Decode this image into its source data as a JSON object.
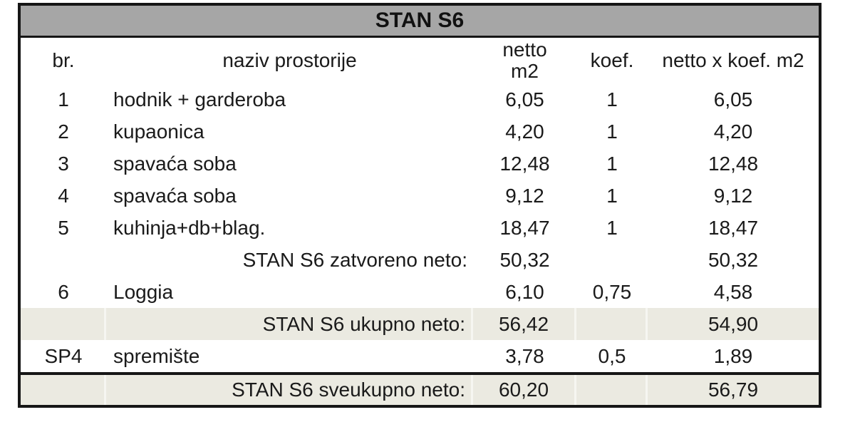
{
  "colors": {
    "title_bar_gray": "#a6a6a6",
    "highlight_beige": "#ebeae1",
    "border_black": "#161616",
    "text": "#1a1a1a"
  },
  "table": {
    "title": "STAN S6",
    "columns": {
      "br": "br.",
      "naziv": "naziv prostorije",
      "netto_line1": "netto",
      "netto_line2": "m2",
      "koef": "koef.",
      "total": "netto x koef. m2"
    },
    "rows": [
      {
        "kind": "normal",
        "br": "1",
        "naziv": "hodnik + garderoba",
        "netto": "6,05",
        "koef": "1",
        "total": "6,05"
      },
      {
        "kind": "normal",
        "br": "2",
        "naziv": "kupaonica",
        "netto": "4,20",
        "koef": "1",
        "total": "4,20"
      },
      {
        "kind": "normal",
        "br": "3",
        "naziv": "spavaća soba",
        "netto": "12,48",
        "koef": "1",
        "total": "12,48"
      },
      {
        "kind": "normal",
        "br": "4",
        "naziv": "spavaća soba",
        "netto": "9,12",
        "koef": "1",
        "total": "9,12"
      },
      {
        "kind": "normal",
        "br": "5",
        "naziv": "kuhinja+db+blag.",
        "netto": "18,47",
        "koef": "1",
        "total": "18,47"
      },
      {
        "kind": "subtotal",
        "br": "",
        "naziv": "STAN S6 zatvoreno neto:",
        "netto": "50,32",
        "koef": "",
        "total": "50,32"
      },
      {
        "kind": "normal",
        "br": "6",
        "naziv": "Loggia",
        "netto": "6,10",
        "koef": "0,75",
        "total": "4,58"
      },
      {
        "kind": "highlight",
        "br": "",
        "naziv": "STAN S6 ukupno neto:",
        "netto": "56,42",
        "koef": "",
        "total": "54,90"
      },
      {
        "kind": "normal",
        "br": "SP4",
        "naziv": "spremište",
        "netto": "3,78",
        "koef": "0,5",
        "total": "1,89"
      },
      {
        "kind": "grand",
        "br": "",
        "naziv": "STAN S6 sveukupno neto:",
        "netto": "60,20",
        "koef": "",
        "total": "56,79"
      }
    ]
  }
}
